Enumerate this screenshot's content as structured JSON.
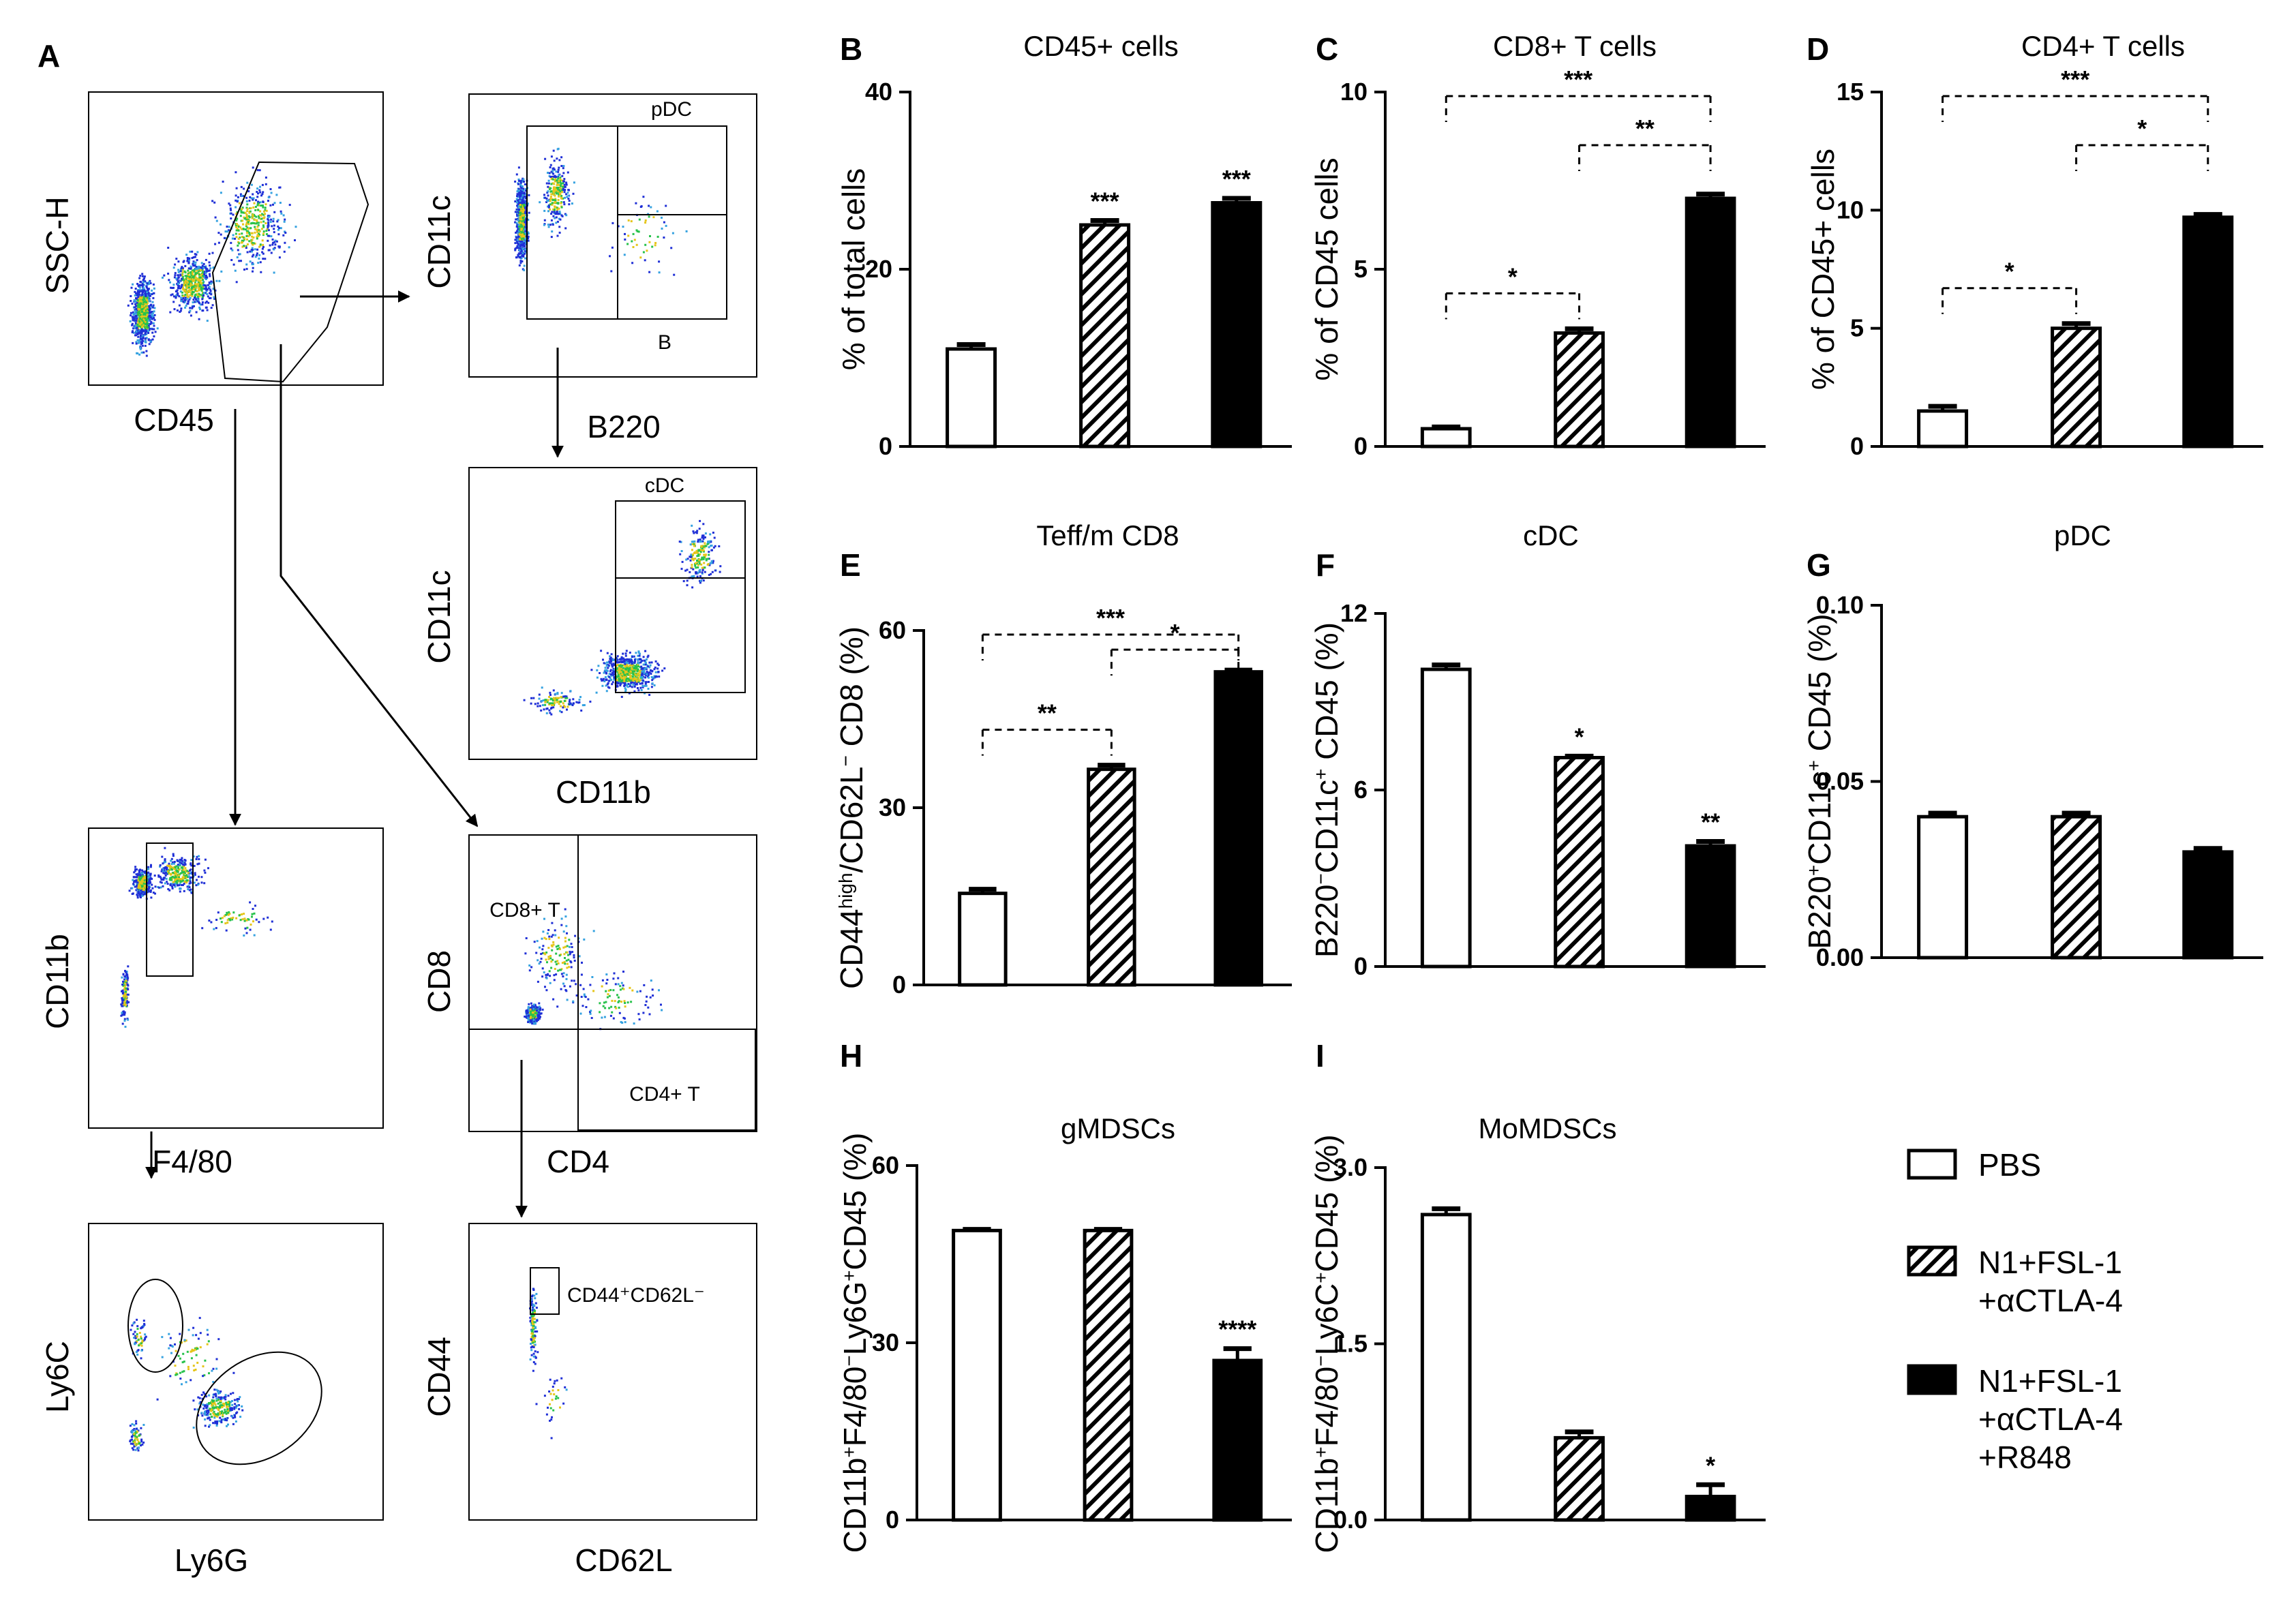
{
  "flow": {
    "panel_letter": "A",
    "plots": [
      {
        "id": "p1",
        "ylabel": "SSC-H",
        "xlabel": "CD45",
        "gates": []
      },
      {
        "id": "p2",
        "ylabel": "CD11c",
        "xlabel": "B220",
        "gates": [
          "pDC",
          "B"
        ]
      },
      {
        "id": "p3",
        "ylabel": "CD11c",
        "xlabel": "CD11b",
        "gates": [
          "cDC"
        ]
      },
      {
        "id": "p4",
        "ylabel": "CD11b",
        "xlabel": "F4/80",
        "gates": []
      },
      {
        "id": "p5",
        "ylabel": "CD8",
        "xlabel": "CD4",
        "gates": [
          "CD8+ T",
          "CD4+ T"
        ]
      },
      {
        "id": "p6",
        "ylabel": "Ly6C",
        "xlabel": "Ly6G",
        "gates": []
      },
      {
        "id": "p7",
        "ylabel": "CD44",
        "xlabel": "CD62L",
        "gates": [
          "CD44⁺CD62L⁻"
        ]
      }
    ]
  },
  "legend": {
    "items": [
      {
        "label": "PBS",
        "fill": "white"
      },
      {
        "label": "N1+FSL-1\n+αCTLA-4",
        "fill": "hatch"
      },
      {
        "label": "N1+FSL-1\n+αCTLA-4\n+R848",
        "fill": "black"
      }
    ]
  },
  "colors": {
    "ink": "#000000",
    "background": "#ffffff",
    "flow_dots": "#1f2fd6"
  },
  "chart_data": [
    {
      "letter": "B",
      "type": "bar",
      "title": "CD45+ cells",
      "ylabel": "% of total cells",
      "categories": [
        "PBS",
        "N1+FSL-1+αCTLA-4",
        "N1+FSL-1+αCTLA-4+R848"
      ],
      "values": [
        11,
        25,
        27.5
      ],
      "errors": [
        0.5,
        0.5,
        0.5
      ],
      "ylim": [
        0,
        40
      ],
      "yticks": [
        "0",
        "20",
        "40"
      ],
      "stars": [
        "",
        "***",
        "***"
      ],
      "brackets": []
    },
    {
      "letter": "C",
      "type": "bar",
      "title": "CD8+ T cells",
      "ylabel": "% of CD45 cells",
      "categories": [
        "PBS",
        "N1+FSL-1+αCTLA-4",
        "N1+FSL-1+αCTLA-4+R848"
      ],
      "values": [
        0.5,
        3.2,
        7.0
      ],
      "errors": [
        0.05,
        0.12,
        0.12
      ],
      "ylim": [
        0,
        10
      ],
      "yticks": [
        "0",
        "5",
        "10"
      ],
      "stars": [
        "",
        "",
        ""
      ],
      "brackets": [
        {
          "from": 0,
          "to": 1,
          "label": "*"
        },
        {
          "from": 1,
          "to": 2,
          "label": "**"
        },
        {
          "from": 0,
          "to": 2,
          "label": "***"
        }
      ]
    },
    {
      "letter": "D",
      "type": "bar",
      "title": "CD4+ T cells",
      "ylabel": "% of CD45+ cells",
      "categories": [
        "PBS",
        "N1+FSL-1+αCTLA-4",
        "N1+FSL-1+αCTLA-4+R848"
      ],
      "values": [
        1.5,
        5.0,
        9.7
      ],
      "errors": [
        0.2,
        0.2,
        0.12
      ],
      "ylim": [
        0,
        15
      ],
      "yticks": [
        "0",
        "5",
        "10",
        "15"
      ],
      "stars": [
        "",
        "",
        ""
      ],
      "brackets": [
        {
          "from": 0,
          "to": 1,
          "label": "*"
        },
        {
          "from": 1,
          "to": 2,
          "label": "*"
        },
        {
          "from": 0,
          "to": 2,
          "label": "***"
        }
      ]
    },
    {
      "letter": "E",
      "type": "bar",
      "title": "Teff/m CD8",
      "ylabel": "CD44high/CD62L- CD8 (%)",
      "categories": [
        "PBS",
        "N1+FSL-1+αCTLA-4",
        "N1+FSL-1+αCTLA-4+R848"
      ],
      "values": [
        15.5,
        36.5,
        53
      ],
      "errors": [
        0.7,
        0.7,
        0.3
      ],
      "ylim": [
        0,
        60
      ],
      "yticks": [
        "0",
        "30",
        "60"
      ],
      "stars": [
        "",
        "",
        ""
      ],
      "brackets": [
        {
          "from": 0,
          "to": 1,
          "label": "**"
        },
        {
          "from": 1,
          "to": 2,
          "label": "*"
        },
        {
          "from": 0,
          "to": 2,
          "label": "***"
        }
      ]
    },
    {
      "letter": "F",
      "type": "bar",
      "title": "cDC",
      "ylabel": "B220-CD11c+ CD45 (%)",
      "categories": [
        "PBS",
        "N1+FSL-1+αCTLA-4",
        "N1+FSL-1+αCTLA-4+R848"
      ],
      "values": [
        10.1,
        7.1,
        4.1
      ],
      "errors": [
        0.15,
        0.05,
        0.15
      ],
      "ylim": [
        0,
        12
      ],
      "yticks": [
        "0",
        "6",
        "12"
      ],
      "stars": [
        "",
        "*",
        "**"
      ],
      "brackets": []
    },
    {
      "letter": "G",
      "type": "bar",
      "title": "pDC",
      "ylabel": "B220+CD11c+ CD45 (%)",
      "categories": [
        "PBS",
        "N1+FSL-1+αCTLA-4",
        "N1+FSL-1+αCTLA-4+R848"
      ],
      "values": [
        0.04,
        0.04,
        0.03
      ],
      "errors": [
        0.001,
        0.001,
        0.001
      ],
      "ylim": [
        0,
        0.1
      ],
      "yticks": [
        "0.00",
        "0.05",
        "0.10"
      ],
      "stars": [
        "",
        "",
        ""
      ],
      "brackets": []
    },
    {
      "letter": "H",
      "type": "bar",
      "title": "gMDSCs",
      "ylabel": "CD11b+F4/80-Ly6G+CD45 (%)",
      "categories": [
        "PBS",
        "N1+FSL-1+αCTLA-4",
        "N1+FSL-1+αCTLA-4+R848"
      ],
      "values": [
        49,
        49,
        27
      ],
      "errors": [
        0.2,
        0.2,
        2
      ],
      "ylim": [
        0,
        60
      ],
      "yticks": [
        "0",
        "30",
        "60"
      ],
      "stars": [
        "",
        "",
        "****"
      ],
      "brackets": []
    },
    {
      "letter": "I",
      "type": "bar",
      "title": "MoMDSCs",
      "ylabel": "CD11b+F4/80-Ly6C+CD45 (%)",
      "categories": [
        "PBS",
        "N1+FSL-1+αCTLA-4",
        "N1+FSL-1+αCTLA-4+R848"
      ],
      "values": [
        2.6,
        0.7,
        0.2
      ],
      "errors": [
        0.05,
        0.05,
        0.1
      ],
      "ylim": [
        0,
        3
      ],
      "yticks": [
        "0.0",
        "1.5",
        "3.0"
      ],
      "stars": [
        "",
        "",
        "*"
      ],
      "brackets": []
    }
  ]
}
